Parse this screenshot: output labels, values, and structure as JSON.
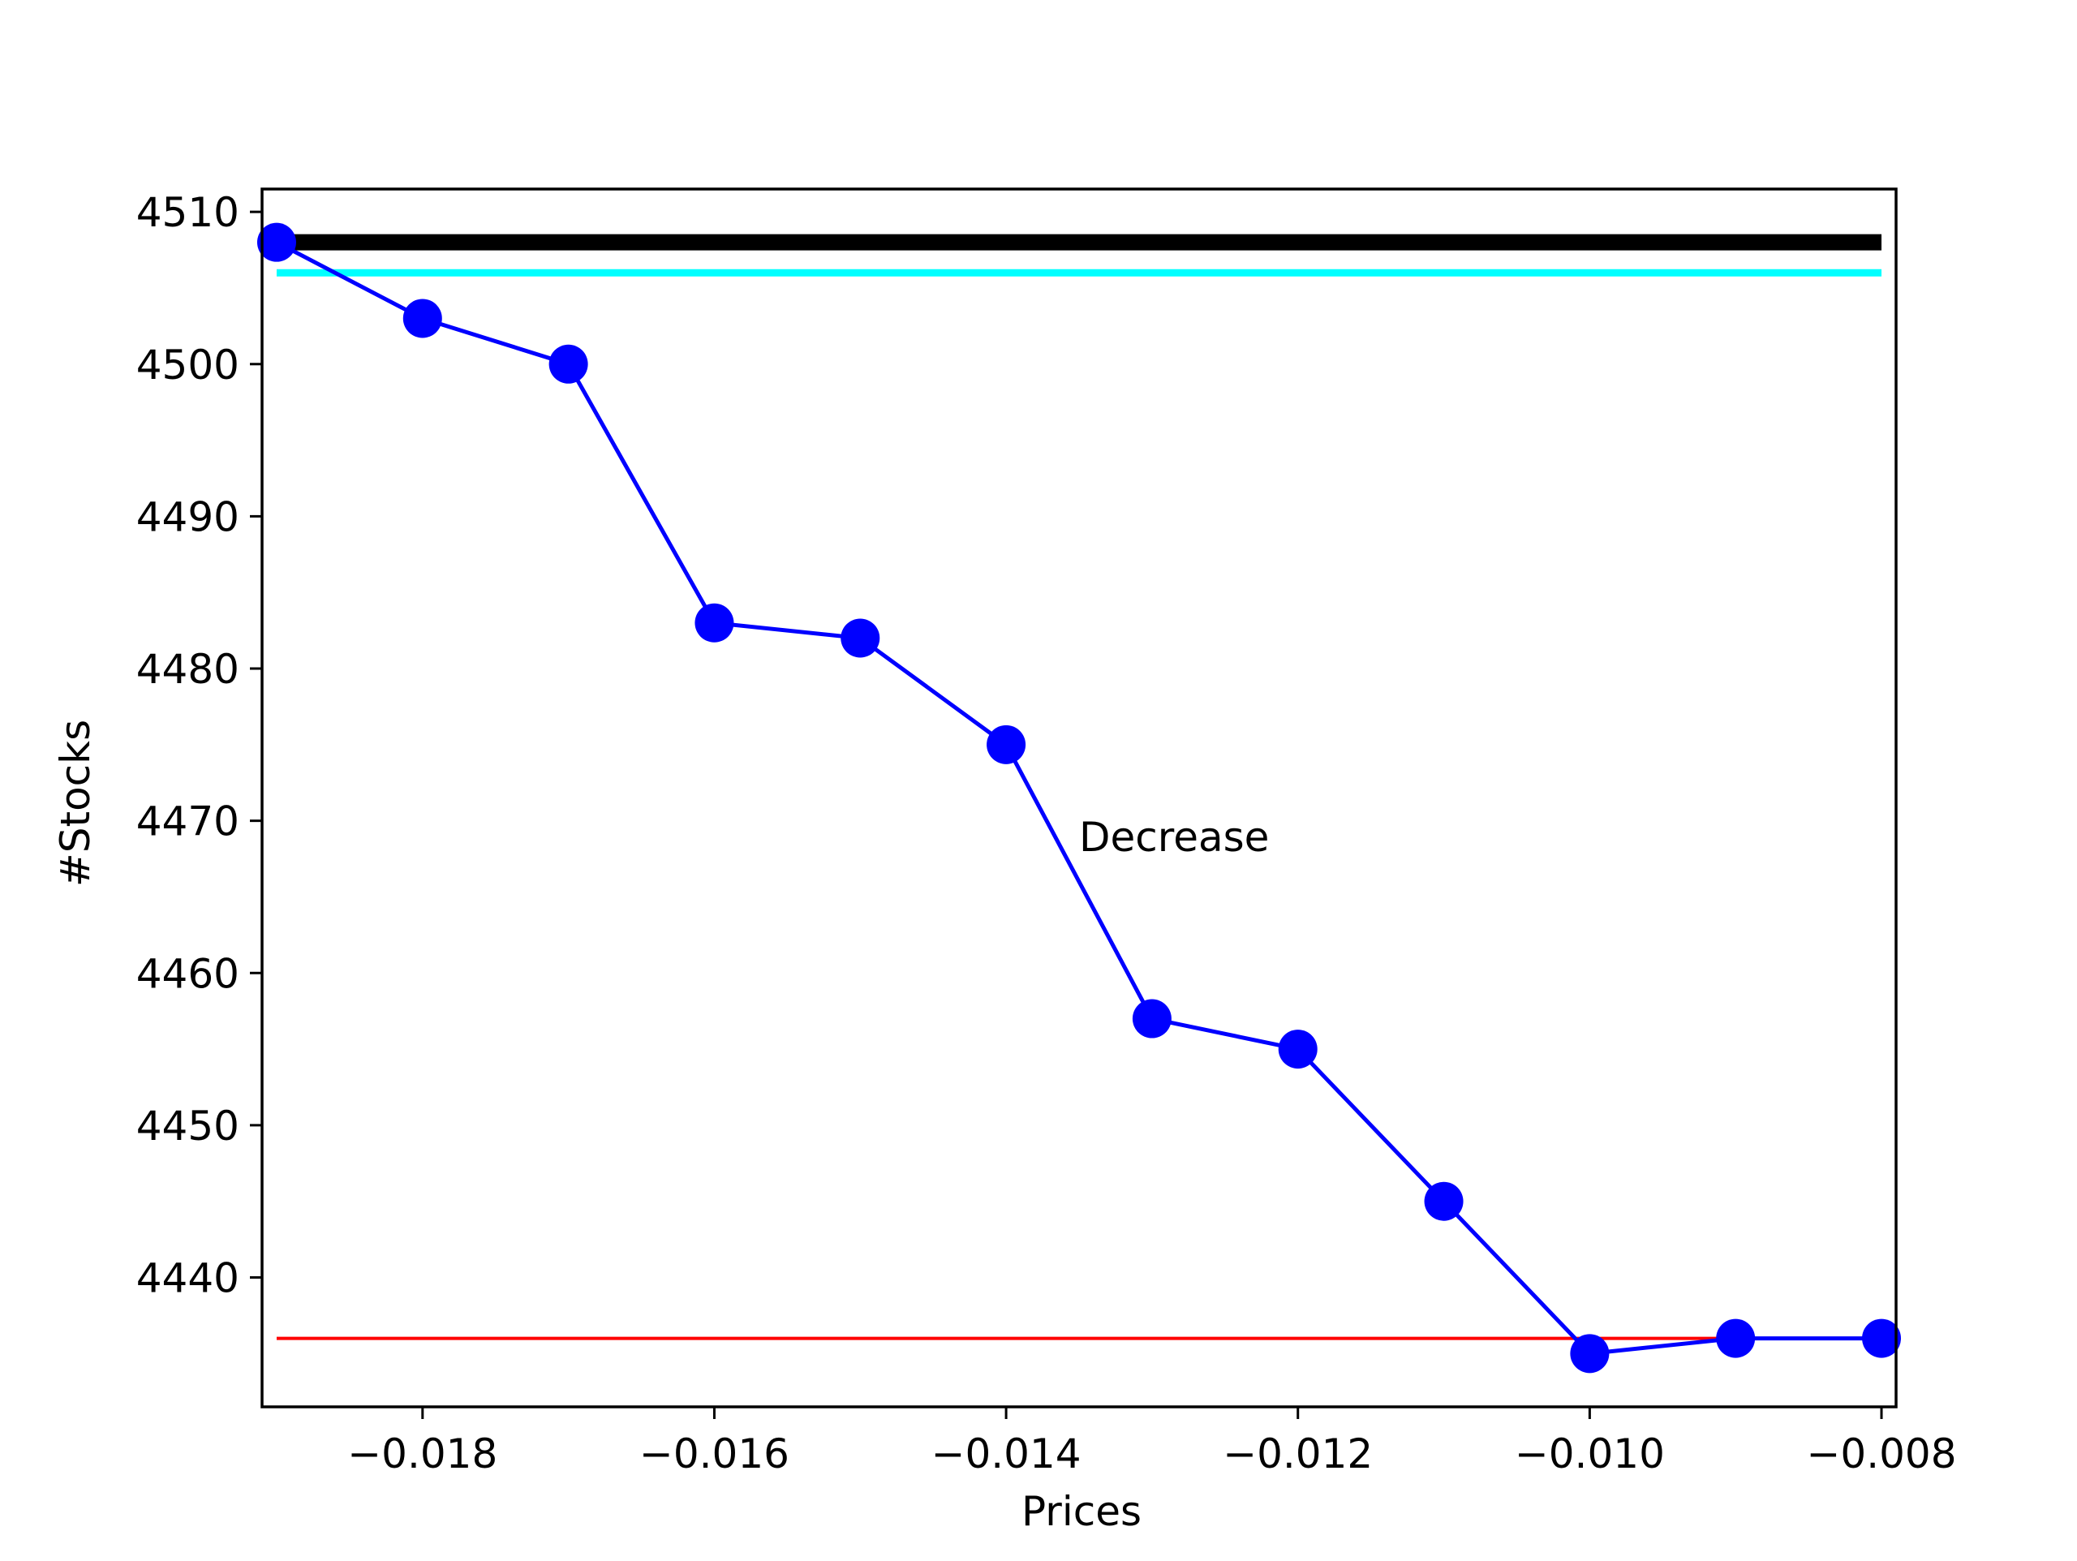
{
  "chart_data": {
    "type": "line",
    "title": "",
    "xlabel": "Prices",
    "ylabel": "#Stocks",
    "xlim": [
      -0.0191,
      -0.0079
    ],
    "ylim": [
      4431.5,
      4511.5
    ],
    "xticks": [
      -0.018,
      -0.016,
      -0.014,
      -0.012,
      -0.01,
      -0.008
    ],
    "xtick_labels": [
      "−0.018",
      "−0.016",
      "−0.014",
      "−0.012",
      "−0.010",
      "−0.008"
    ],
    "yticks": [
      4440,
      4450,
      4460,
      4470,
      4480,
      4490,
      4500,
      4510
    ],
    "ytick_labels": [
      "4440",
      "4450",
      "4460",
      "4470",
      "4480",
      "4490",
      "4500",
      "4510"
    ],
    "grid": false,
    "series": [
      {
        "color": "#0000ff",
        "marker": "circle",
        "x": [
          -0.019,
          -0.018,
          -0.017,
          -0.016,
          -0.015,
          -0.014,
          -0.013,
          -0.012,
          -0.011,
          -0.01,
          -0.009,
          -0.008
        ],
        "y": [
          4508,
          4503,
          4500,
          4483,
          4482,
          4475,
          4457,
          4455,
          4445,
          4435,
          4436,
          4436
        ]
      }
    ],
    "reference_lines": [
      {
        "color": "#000000",
        "y": 4508,
        "x_from": -0.019,
        "x_to": -0.008,
        "style": "thick"
      },
      {
        "color": "#00ffff",
        "y": 4506,
        "x_from": -0.019,
        "x_to": -0.008,
        "style": "medium"
      },
      {
        "color": "#ff0000",
        "y": 4436,
        "x_from": -0.019,
        "x_to": -0.009,
        "style": "thin"
      }
    ],
    "annotations": [
      {
        "text": "Decrease",
        "x": -0.0135,
        "y": 4468
      }
    ]
  }
}
